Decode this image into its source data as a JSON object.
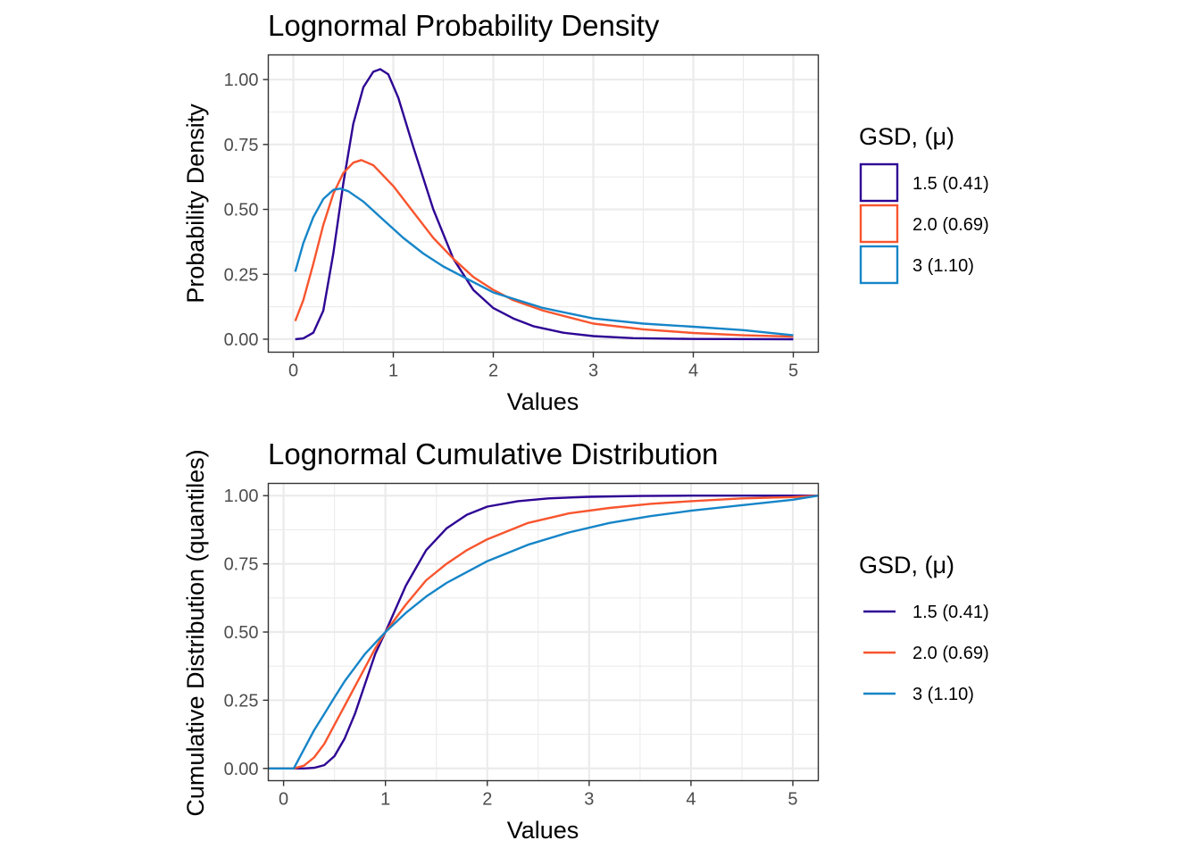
{
  "chart_data": [
    {
      "type": "line",
      "title": "Lognormal Probability Density",
      "xlabel": "Values",
      "ylabel": "Probability Density",
      "xlim": [
        -0.25,
        5.25
      ],
      "ylim": [
        -0.05,
        1.095
      ],
      "xticks": [
        0,
        1,
        2,
        3,
        4,
        5
      ],
      "xtick_labels": [
        "0",
        "1",
        "2",
        "3",
        "4",
        "5"
      ],
      "yticks": [
        0,
        0.25,
        0.5,
        0.75,
        1.0
      ],
      "ytick_labels": [
        "0.00",
        "0.25",
        "0.50",
        "0.75",
        "1.00"
      ],
      "grid": true,
      "legend": {
        "title": "GSD, (μ)",
        "position": "right",
        "key_style": "box",
        "labels": [
          "1.5 (0.41)",
          "2.0 (0.69)",
          "3 (1.10)"
        ]
      },
      "series": [
        {
          "name": "1.5 (0.41)",
          "color": "#2e0594",
          "x": [
            0.02,
            0.1,
            0.2,
            0.3,
            0.4,
            0.5,
            0.6,
            0.7,
            0.8,
            0.87,
            0.95,
            1.05,
            1.2,
            1.4,
            1.6,
            1.8,
            2.0,
            2.2,
            2.4,
            2.7,
            3.0,
            3.4,
            4.0,
            5.0
          ],
          "y": [
            0.0,
            0.003,
            0.025,
            0.11,
            0.33,
            0.6,
            0.83,
            0.97,
            1.03,
            1.04,
            1.02,
            0.93,
            0.74,
            0.5,
            0.31,
            0.19,
            0.12,
            0.08,
            0.05,
            0.025,
            0.012,
            0.004,
            0.001,
            0.0
          ]
        },
        {
          "name": "2.0 (0.69)",
          "color": "#f8552e",
          "x": [
            0.02,
            0.1,
            0.2,
            0.3,
            0.4,
            0.5,
            0.6,
            0.68,
            0.8,
            1.0,
            1.2,
            1.4,
            1.6,
            1.8,
            2.0,
            2.2,
            2.5,
            3.0,
            3.5,
            4.0,
            4.5,
            5.0
          ],
          "y": [
            0.07,
            0.15,
            0.29,
            0.44,
            0.56,
            0.64,
            0.68,
            0.69,
            0.67,
            0.59,
            0.49,
            0.39,
            0.31,
            0.24,
            0.19,
            0.15,
            0.11,
            0.06,
            0.038,
            0.024,
            0.015,
            0.01
          ]
        },
        {
          "name": "3 (1.10)",
          "color": "#1685c8",
          "x": [
            0.02,
            0.1,
            0.2,
            0.3,
            0.4,
            0.47,
            0.55,
            0.7,
            0.9,
            1.1,
            1.3,
            1.5,
            1.75,
            2.0,
            2.5,
            3.0,
            3.5,
            4.0,
            4.5,
            5.0
          ],
          "y": [
            0.26,
            0.37,
            0.47,
            0.54,
            0.575,
            0.58,
            0.57,
            0.53,
            0.46,
            0.39,
            0.33,
            0.28,
            0.23,
            0.18,
            0.12,
            0.08,
            0.06,
            0.048,
            0.035,
            0.015
          ]
        }
      ]
    },
    {
      "type": "line",
      "title": "Lognormal Cumulative Distribution",
      "xlabel": "Values",
      "ylabel": "Cumulative Distribution (quantiles)",
      "xlim": [
        -0.15,
        5.25
      ],
      "ylim": [
        -0.045,
        1.045
      ],
      "xticks": [
        0,
        1,
        2,
        3,
        4,
        5
      ],
      "xtick_labels": [
        "0",
        "1",
        "2",
        "3",
        "4",
        "5"
      ],
      "yticks": [
        0,
        0.25,
        0.5,
        0.75,
        1.0
      ],
      "ytick_labels": [
        "0.00",
        "0.25",
        "0.50",
        "0.75",
        "1.00"
      ],
      "grid": true,
      "legend": {
        "title": "GSD, (μ)",
        "position": "right",
        "key_style": "line",
        "labels": [
          "1.5 (0.41)",
          "2.0 (0.69)",
          "3 (1.10)"
        ]
      },
      "series": [
        {
          "name": "1.5 (0.41)",
          "color": "#2e0594",
          "x": [
            -0.15,
            0.1,
            0.2,
            0.3,
            0.4,
            0.5,
            0.6,
            0.7,
            0.8,
            0.9,
            1.0,
            1.2,
            1.4,
            1.6,
            1.8,
            2.0,
            2.3,
            2.6,
            3.0,
            3.5,
            4.0,
            5.0,
            5.25
          ],
          "y": [
            0.0,
            0.0,
            0.0,
            0.002,
            0.012,
            0.045,
            0.11,
            0.2,
            0.31,
            0.42,
            0.5,
            0.67,
            0.8,
            0.88,
            0.93,
            0.96,
            0.98,
            0.99,
            0.996,
            0.999,
            1.0,
            1.0,
            1.0
          ]
        },
        {
          "name": "2.0 (0.69)",
          "color": "#f8552e",
          "x": [
            -0.15,
            0.1,
            0.2,
            0.3,
            0.4,
            0.5,
            0.6,
            0.7,
            0.8,
            0.9,
            1.0,
            1.2,
            1.4,
            1.6,
            1.8,
            2.0,
            2.4,
            2.8,
            3.2,
            3.6,
            4.0,
            4.5,
            5.0,
            5.25
          ],
          "y": [
            0.0,
            0.0,
            0.01,
            0.04,
            0.09,
            0.16,
            0.23,
            0.3,
            0.37,
            0.44,
            0.5,
            0.6,
            0.69,
            0.75,
            0.8,
            0.84,
            0.9,
            0.935,
            0.955,
            0.97,
            0.98,
            0.99,
            0.995,
            1.0
          ]
        },
        {
          "name": "3 (1.10)",
          "color": "#1685c8",
          "x": [
            -0.15,
            0.1,
            0.2,
            0.3,
            0.4,
            0.5,
            0.6,
            0.7,
            0.8,
            0.9,
            1.0,
            1.2,
            1.4,
            1.6,
            1.8,
            2.0,
            2.4,
            2.8,
            3.2,
            3.6,
            4.0,
            4.5,
            5.0,
            5.25
          ],
          "y": [
            0.0,
            0.0,
            0.07,
            0.14,
            0.2,
            0.26,
            0.32,
            0.37,
            0.42,
            0.46,
            0.5,
            0.57,
            0.63,
            0.68,
            0.72,
            0.76,
            0.82,
            0.865,
            0.9,
            0.925,
            0.945,
            0.965,
            0.985,
            1.0
          ]
        }
      ]
    }
  ]
}
